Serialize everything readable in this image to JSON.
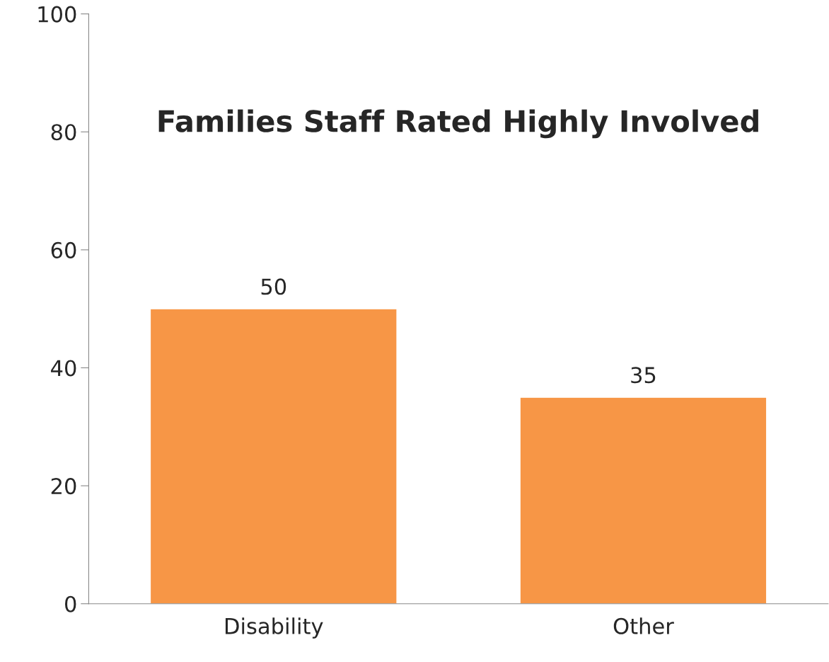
{
  "chart_data": {
    "type": "bar",
    "title": "Families Staff Rated Highly Involved",
    "categories": [
      "Disability",
      "Other"
    ],
    "values": [
      50,
      35
    ],
    "color": "#f79646",
    "ylim": [
      0,
      100
    ],
    "yticks": [
      0,
      20,
      40,
      60,
      80,
      100
    ],
    "data_labels": true,
    "grid": false,
    "legend": false
  }
}
